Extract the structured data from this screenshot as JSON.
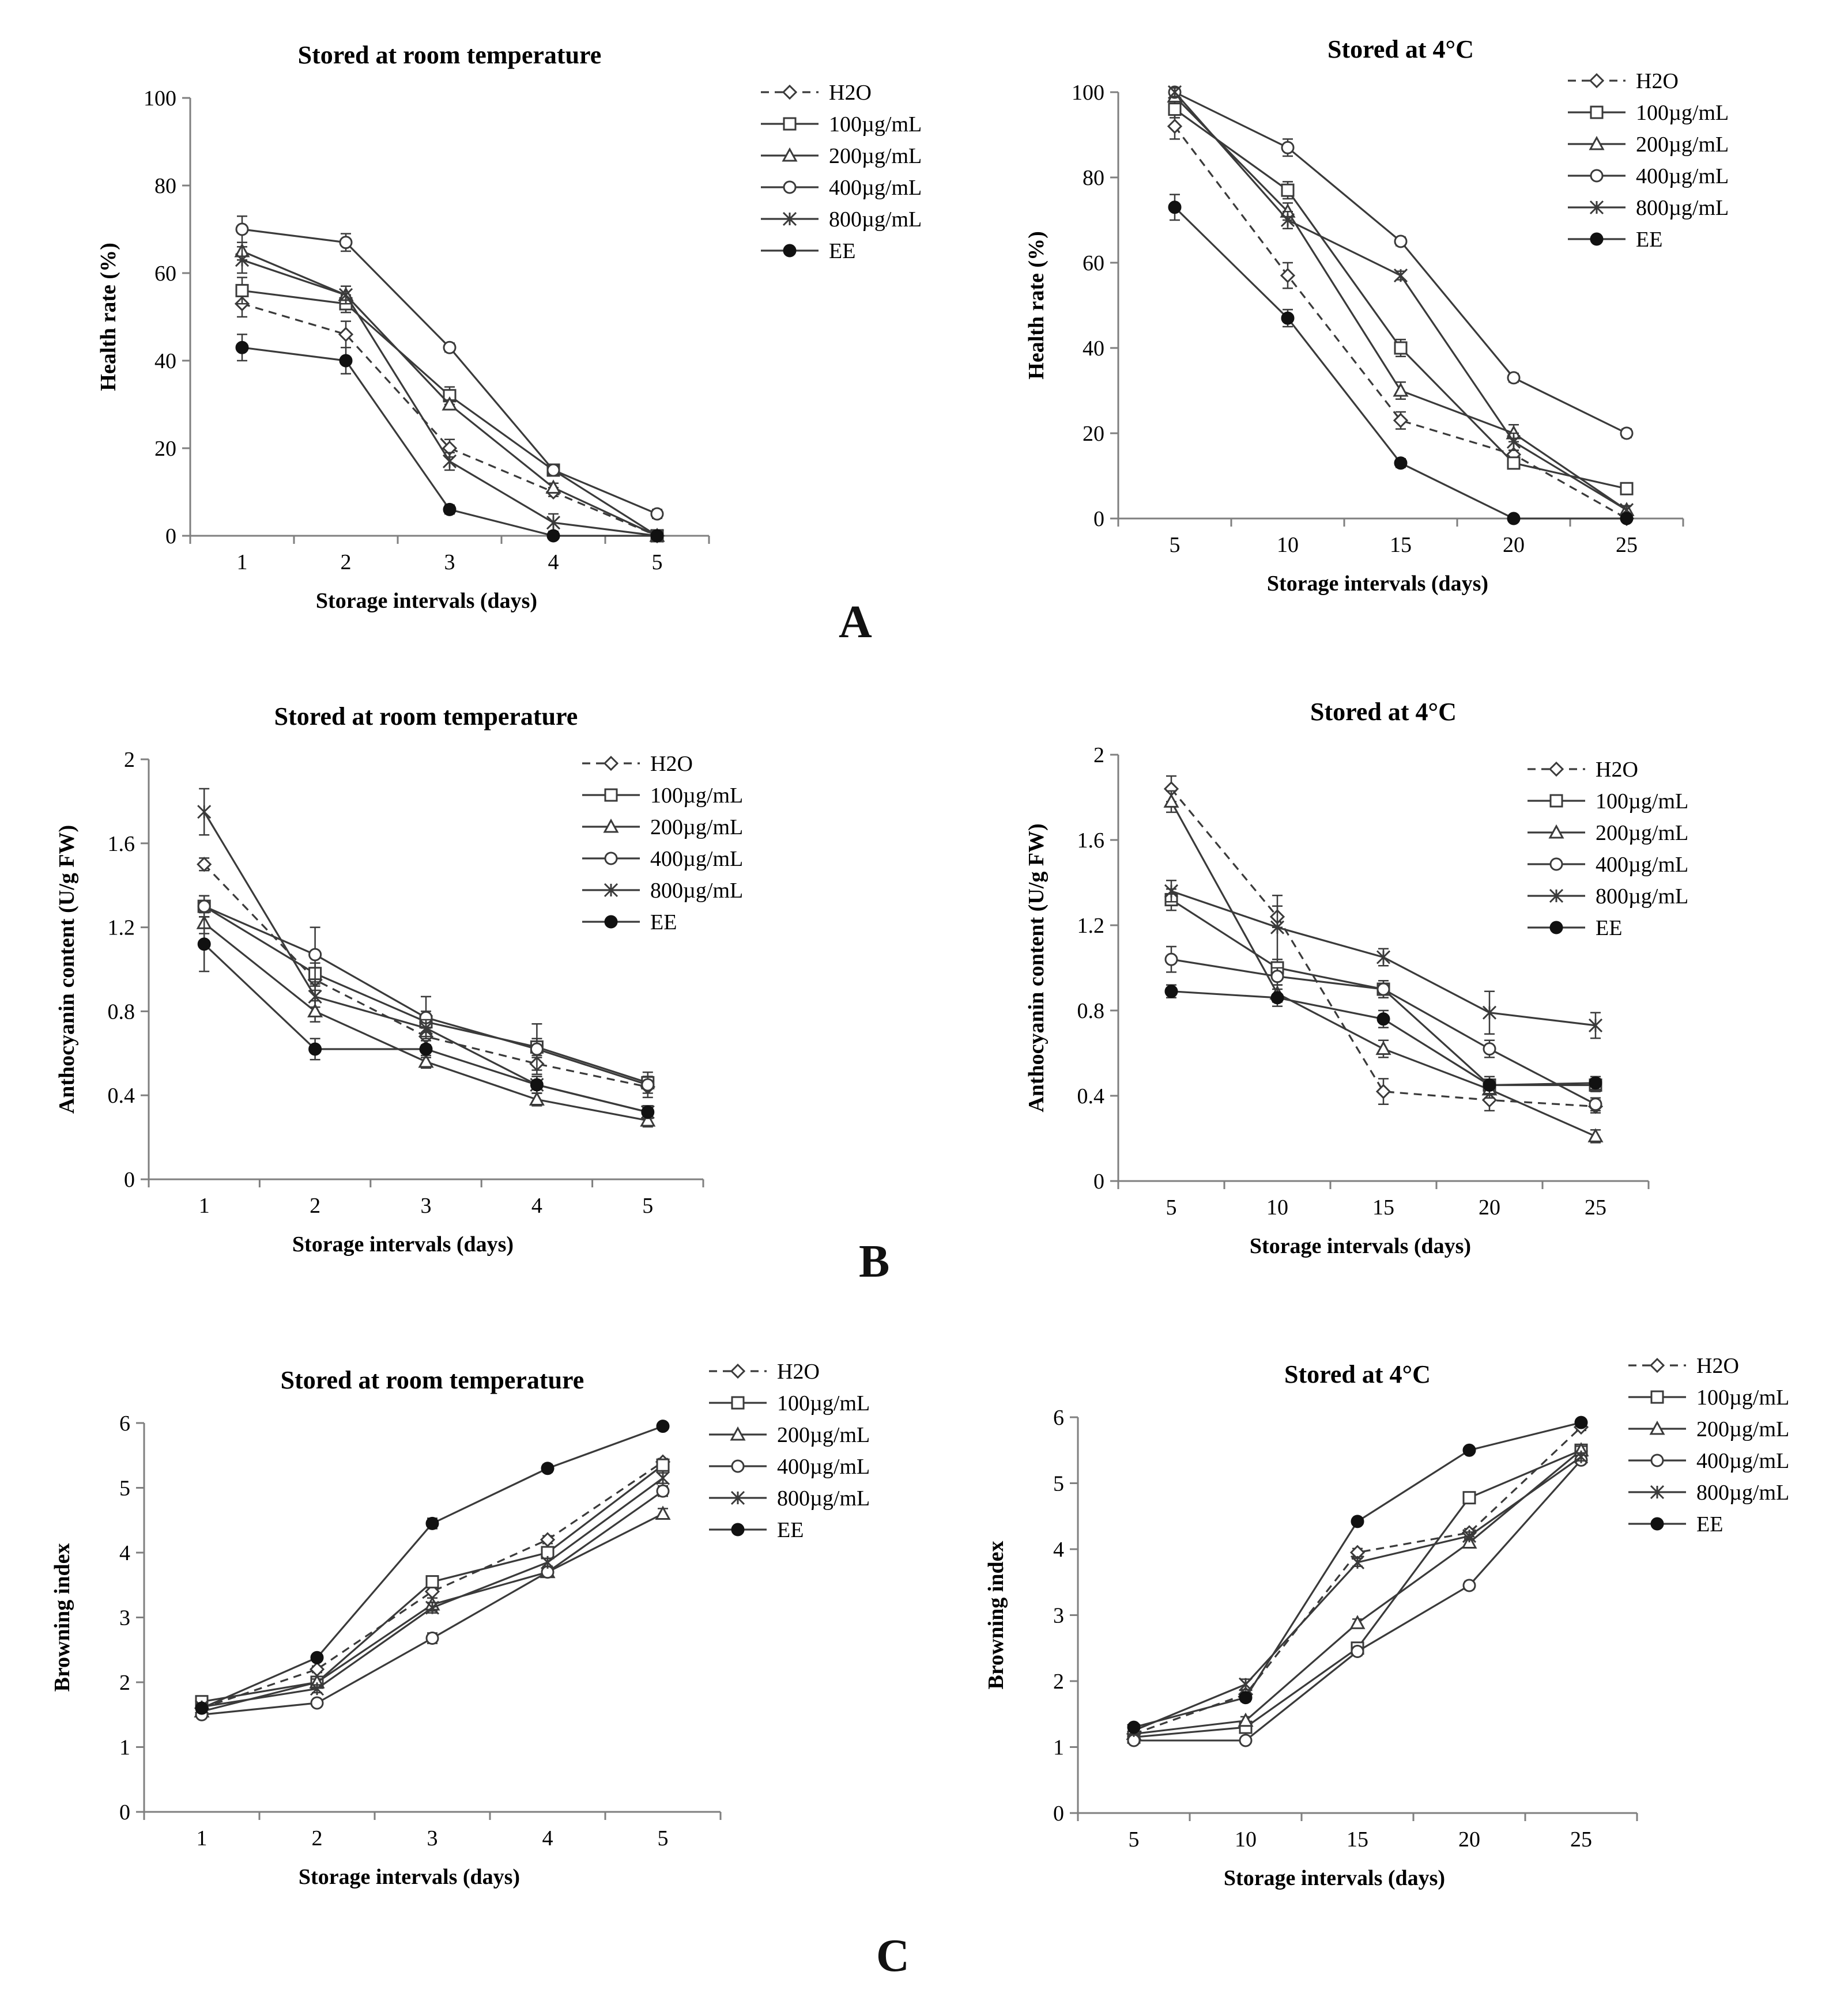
{
  "figure": {
    "panel_labels": [
      "A",
      "B",
      "C"
    ]
  },
  "colors": {
    "line": "#3a3a3a",
    "axis": "#7f7f7f",
    "text": "#111111",
    "background": "#ffffff"
  },
  "legend_labels": [
    "H2O",
    "100µg/mL",
    "200µg/mL",
    "400µg/mL",
    "800µg/mL",
    "EE"
  ],
  "chart_data": [
    {
      "id": "A-room",
      "type": "line",
      "title": "Stored at room temperature",
      "xlabel": "Storage intervals (days)",
      "ylabel": "Health rate (%)",
      "categories": [
        "1",
        "2",
        "3",
        "4",
        "5"
      ],
      "ylim": [
        0,
        100
      ],
      "yticks": [
        0,
        20,
        40,
        60,
        80,
        100
      ],
      "grid": false,
      "legend": "top-right",
      "series": [
        {
          "name": "H2O",
          "marker": "diamond",
          "dash": true,
          "values": [
            53,
            46,
            20,
            10,
            0
          ],
          "err": [
            3,
            3,
            2,
            1,
            0
          ]
        },
        {
          "name": "100µg/mL",
          "marker": "square",
          "values": [
            56,
            53,
            32,
            15,
            0
          ],
          "err": [
            3,
            2,
            2,
            1,
            0
          ]
        },
        {
          "name": "200µg/mL",
          "marker": "triangle",
          "values": [
            65,
            55,
            30,
            11,
            0
          ],
          "err": [
            2,
            2,
            1,
            1,
            0
          ]
        },
        {
          "name": "400µg/mL",
          "marker": "circle",
          "values": [
            70,
            67,
            43,
            15,
            5
          ],
          "err": [
            3,
            2,
            1,
            1,
            1
          ]
        },
        {
          "name": "800µg/mL",
          "marker": "x",
          "values": [
            63,
            55,
            17,
            3,
            0
          ],
          "err": [
            3,
            2,
            2,
            2,
            0
          ]
        },
        {
          "name": "EE",
          "marker": "dot",
          "values": [
            43,
            40,
            6,
            0,
            0
          ],
          "err": [
            3,
            3,
            1,
            0,
            0
          ]
        }
      ]
    },
    {
      "id": "A-cold",
      "type": "line",
      "title": "Stored at 4°C",
      "xlabel": "Storage intervals (days)",
      "ylabel": "Health rate (%)",
      "categories": [
        "5",
        "10",
        "15",
        "20",
        "25"
      ],
      "ylim": [
        0,
        100
      ],
      "yticks": [
        0,
        20,
        40,
        60,
        80,
        100
      ],
      "grid": false,
      "legend": "top-right",
      "series": [
        {
          "name": "H2O",
          "marker": "diamond",
          "dash": true,
          "values": [
            92,
            57,
            23,
            15,
            0
          ],
          "err": [
            3,
            3,
            2,
            1,
            0
          ]
        },
        {
          "name": "100µg/mL",
          "marker": "square",
          "values": [
            96,
            77,
            40,
            13,
            7
          ],
          "err": [
            2,
            2,
            2,
            1,
            1
          ]
        },
        {
          "name": "200µg/mL",
          "marker": "triangle",
          "values": [
            99,
            72,
            30,
            20,
            2
          ],
          "err": [
            1,
            2,
            2,
            2,
            1
          ]
        },
        {
          "name": "400µg/mL",
          "marker": "circle",
          "values": [
            100,
            87,
            65,
            33,
            20
          ],
          "err": [
            1,
            2,
            1,
            1,
            1
          ]
        },
        {
          "name": "800µg/mL",
          "marker": "x",
          "values": [
            100,
            70,
            57,
            18,
            2
          ],
          "err": [
            1,
            2,
            1,
            2,
            1
          ]
        },
        {
          "name": "EE",
          "marker": "dot",
          "values": [
            73,
            47,
            13,
            0,
            0
          ],
          "err": [
            3,
            2,
            1,
            0,
            0
          ]
        }
      ]
    },
    {
      "id": "B-room",
      "type": "line",
      "title": "Stored at room temperature",
      "xlabel": "Storage intervals (days)",
      "ylabel": "Anthocyanin content (U/g FW)",
      "categories": [
        "1",
        "2",
        "3",
        "4",
        "5"
      ],
      "ylim": [
        0,
        2
      ],
      "yticks": [
        0,
        0.4,
        0.8,
        1.2,
        1.6,
        2
      ],
      "grid": false,
      "legend": "top-right",
      "series": [
        {
          "name": "H2O",
          "marker": "diamond",
          "dash": true,
          "values": [
            1.5,
            0.95,
            0.68,
            0.55,
            0.44
          ],
          "err": [
            0.03,
            0.05,
            0.04,
            0.03,
            0.03
          ]
        },
        {
          "name": "100µg/mL",
          "marker": "square",
          "values": [
            1.3,
            0.98,
            0.75,
            0.63,
            0.46
          ],
          "err": [
            0.05,
            0.05,
            0.05,
            0.04,
            0.03
          ]
        },
        {
          "name": "200µg/mL",
          "marker": "triangle",
          "values": [
            1.22,
            0.8,
            0.56,
            0.38,
            0.28
          ],
          "err": [
            0.05,
            0.05,
            0.03,
            0.03,
            0.03
          ]
        },
        {
          "name": "400µg/mL",
          "marker": "circle",
          "values": [
            1.3,
            1.07,
            0.77,
            0.62,
            0.45
          ],
          "err": [
            0.05,
            0.13,
            0.1,
            0.12,
            0.06
          ]
        },
        {
          "name": "800µg/mL",
          "marker": "x",
          "values": [
            1.75,
            0.87,
            0.72,
            0.45,
            0.32
          ],
          "err": [
            0.11,
            0.05,
            0.04,
            0.04,
            0.03
          ]
        },
        {
          "name": "EE",
          "marker": "dot",
          "values": [
            1.12,
            0.62,
            0.62,
            0.45,
            0.32
          ],
          "err": [
            0.13,
            0.05,
            0.04,
            0.04,
            0.03
          ]
        }
      ]
    },
    {
      "id": "B-cold",
      "type": "line",
      "title": "Stored at 4°C",
      "xlabel": "Storage intervals (days)",
      "ylabel": "Anthocyanin content (U/g FW)",
      "categories": [
        "5",
        "10",
        "15",
        "20",
        "25"
      ],
      "ylim": [
        0,
        2
      ],
      "yticks": [
        0,
        0.4,
        0.8,
        1.2,
        1.6,
        2
      ],
      "grid": false,
      "legend": "top-right",
      "series": [
        {
          "name": "H2O",
          "marker": "diamond",
          "dash": true,
          "values": [
            1.84,
            1.24,
            0.42,
            0.38,
            0.35
          ],
          "err": [
            0.06,
            0.05,
            0.06,
            0.05,
            0.03
          ]
        },
        {
          "name": "100µg/mL",
          "marker": "square",
          "values": [
            1.32,
            1.0,
            0.9,
            0.45,
            0.45
          ],
          "err": [
            0.05,
            0.04,
            0.04,
            0.04,
            0.03
          ]
        },
        {
          "name": "200µg/mL",
          "marker": "triangle",
          "values": [
            1.78,
            0.88,
            0.62,
            0.43,
            0.21
          ],
          "err": [
            0.05,
            0.04,
            0.04,
            0.04,
            0.03
          ]
        },
        {
          "name": "400µg/mL",
          "marker": "circle",
          "values": [
            1.04,
            0.96,
            0.9,
            0.62,
            0.36
          ],
          "err": [
            0.06,
            0.04,
            0.04,
            0.04,
            0.03
          ]
        },
        {
          "name": "800µg/mL",
          "marker": "x",
          "values": [
            1.36,
            1.19,
            1.05,
            0.79,
            0.73
          ],
          "err": [
            0.05,
            0.15,
            0.04,
            0.1,
            0.06
          ]
        },
        {
          "name": "EE",
          "marker": "dot",
          "values": [
            0.89,
            0.86,
            0.76,
            0.45,
            0.46
          ],
          "err": [
            0.03,
            0.04,
            0.04,
            0.04,
            0.03
          ]
        }
      ]
    },
    {
      "id": "C-room",
      "type": "line",
      "title": "Stored at room temperature",
      "xlabel": "Storage intervals (days)",
      "ylabel": "Browning index",
      "categories": [
        "1",
        "2",
        "3",
        "4",
        "5"
      ],
      "ylim": [
        0,
        6
      ],
      "yticks": [
        0,
        1,
        2,
        3,
        4,
        5,
        6
      ],
      "grid": false,
      "legend": "top-right",
      "series": [
        {
          "name": "H2O",
          "marker": "diamond",
          "dash": true,
          "values": [
            1.6,
            2.2,
            3.4,
            4.2,
            5.4
          ],
          "err": [
            0.05,
            0.05,
            0.1,
            0.06,
            0.05
          ]
        },
        {
          "name": "100µg/mL",
          "marker": "square",
          "values": [
            1.7,
            2.0,
            3.55,
            4.0,
            5.35
          ],
          "err": [
            0.05,
            0.05,
            0.06,
            0.06,
            0.06
          ]
        },
        {
          "name": "200µg/mL",
          "marker": "triangle",
          "values": [
            1.55,
            2.0,
            3.2,
            3.7,
            4.6
          ],
          "err": [
            0.05,
            0.05,
            0.1,
            0.06,
            0.08
          ]
        },
        {
          "name": "400µg/mL",
          "marker": "circle",
          "values": [
            1.5,
            1.68,
            2.68,
            3.7,
            4.95
          ],
          "err": [
            0.05,
            0.04,
            0.08,
            0.06,
            0.08
          ]
        },
        {
          "name": "800µg/mL",
          "marker": "x",
          "values": [
            1.62,
            1.9,
            3.15,
            3.85,
            5.15
          ],
          "err": [
            0.05,
            0.06,
            0.08,
            0.06,
            0.08
          ]
        },
        {
          "name": "EE",
          "marker": "dot",
          "values": [
            1.6,
            2.38,
            4.45,
            5.3,
            5.95
          ],
          "err": [
            0.05,
            0.05,
            0.08,
            0.06,
            0.05
          ]
        }
      ]
    },
    {
      "id": "C-cold",
      "type": "line",
      "title": "Stored at 4°C",
      "xlabel": "Storage intervals (days)",
      "ylabel": "Browning index",
      "categories": [
        "5",
        "10",
        "15",
        "20",
        "25"
      ],
      "ylim": [
        0,
        6
      ],
      "yticks": [
        0,
        1,
        2,
        3,
        4,
        5,
        6
      ],
      "grid": false,
      "legend": "top-right",
      "series": [
        {
          "name": "H2O",
          "marker": "diamond",
          "dash": true,
          "values": [
            1.2,
            1.8,
            3.95,
            4.25,
            5.85
          ],
          "err": [
            0.05,
            0.06,
            0.06,
            0.06,
            0.05
          ]
        },
        {
          "name": "100µg/mL",
          "marker": "square",
          "values": [
            1.15,
            1.3,
            2.5,
            4.78,
            5.5
          ],
          "err": [
            0.05,
            0.06,
            0.06,
            0.05,
            0.06
          ]
        },
        {
          "name": "200µg/mL",
          "marker": "triangle",
          "values": [
            1.2,
            1.4,
            2.88,
            4.1,
            5.5
          ],
          "err": [
            0.05,
            0.06,
            0.06,
            0.06,
            0.06
          ]
        },
        {
          "name": "400µg/mL",
          "marker": "circle",
          "values": [
            1.1,
            1.1,
            2.45,
            3.45,
            5.35
          ],
          "err": [
            0.04,
            0.05,
            0.06,
            0.06,
            0.06
          ]
        },
        {
          "name": "800µg/mL",
          "marker": "x",
          "values": [
            1.25,
            1.95,
            3.8,
            4.2,
            5.4
          ],
          "err": [
            0.05,
            0.08,
            0.06,
            0.06,
            0.06
          ]
        },
        {
          "name": "EE",
          "marker": "dot",
          "values": [
            1.3,
            1.75,
            4.42,
            5.5,
            5.92
          ],
          "err": [
            0.05,
            0.06,
            0.05,
            0.05,
            0.05
          ]
        }
      ]
    }
  ]
}
